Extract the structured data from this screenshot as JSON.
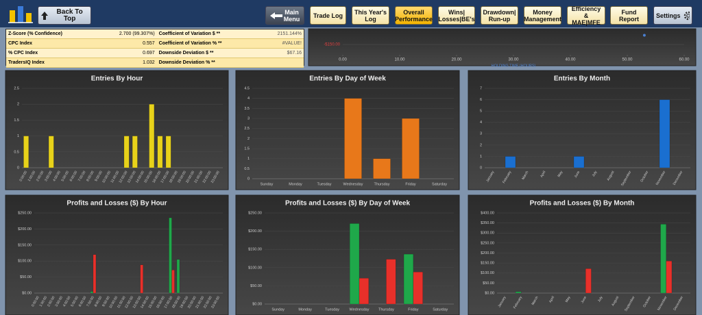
{
  "toolbar": {
    "back": "Back To Top",
    "main_menu": "Main Menu",
    "tabs": [
      "Trade Log",
      "This Year's Log",
      "Overall Performance",
      "Wins| Losses|BE's",
      "Drawdown| Run-up",
      "Money Management",
      "Efficiency & MAE|MFE",
      "Fund Report"
    ],
    "settings": "Settings"
  },
  "stats": {
    "rows": [
      [
        "Z-Score (% Confidence)",
        "2.700 (99.307%)",
        "Coefficient of Variation $ **",
        "2151.144%"
      ],
      [
        "CPC Index",
        "0.557",
        "Coefficient of Variation % **",
        "#VALUE!"
      ],
      [
        "% CPC Index",
        "0.697",
        "Downside Deviation $ **",
        "$67.16"
      ],
      [
        "TradersIQ Index",
        "1.032",
        "Downside Deviation % **"
      ]
    ]
  },
  "chart_data": [
    {
      "type": "scatter",
      "x_label": "HOLDING TIME (HOURS)",
      "x": [
        53
      ],
      "values": [
        -105
      ],
      "color": "#4a7fd0",
      "xlim": [
        0,
        60
      ],
      "xticks": [
        {
          "value": 0,
          "label": "0.00"
        },
        {
          "value": 10,
          "label": "10.00"
        },
        {
          "value": 20,
          "label": "20.00"
        },
        {
          "value": 30,
          "label": "30.00"
        },
        {
          "value": 40,
          "label": "40.00"
        },
        {
          "value": 50,
          "label": "50.00"
        },
        {
          "value": 60,
          "label": "60.00"
        }
      ],
      "ylim": [
        -200,
        -100
      ],
      "yticks": [
        {
          "value": -150,
          "label": "-$150.00"
        }
      ]
    },
    {
      "type": "bar",
      "title": "Entries By Hour",
      "categories": [
        "0:00:00",
        "1:00:00",
        "2:00:00",
        "3:00:00",
        "4:00:00",
        "5:00:00",
        "6:00:00",
        "7:00:00",
        "8:00:00",
        "9:00:00",
        "10:00:00",
        "11:00:00",
        "12:00:00",
        "13:00:00",
        "14:00:00",
        "15:00:00",
        "16:00:00",
        "17:00:00",
        "18:00:00",
        "19:00:00",
        "20:00:00",
        "21:00:00",
        "22:00:00",
        "23:00:00"
      ],
      "values": [
        1,
        0,
        0,
        1,
        0,
        0,
        0,
        0,
        0,
        0,
        0,
        0,
        1,
        1,
        0,
        2,
        1,
        1,
        0,
        0,
        0,
        0,
        0,
        0
      ],
      "color": "#e8d21a",
      "ylim": [
        0,
        2.5
      ],
      "yticks": [
        0,
        0.5,
        1,
        1.5,
        2,
        2.5
      ]
    },
    {
      "type": "bar",
      "title": "Entries By Day of Week",
      "categories": [
        "Sunday",
        "Monday",
        "Tuesday",
        "Wednesday",
        "Thursday",
        "Friday",
        "Saturday"
      ],
      "values": [
        0,
        0,
        0,
        4,
        1,
        3,
        0
      ],
      "color": "#e8781a",
      "ylim": [
        0,
        4.5
      ],
      "yticks": [
        0,
        0.5,
        1,
        1.5,
        2,
        2.5,
        3,
        3.5,
        4,
        4.5
      ]
    },
    {
      "type": "bar",
      "title": "Entries By Month",
      "categories": [
        "January",
        "February",
        "March",
        "April",
        "May",
        "June",
        "July",
        "August",
        "September",
        "October",
        "November",
        "December"
      ],
      "values": [
        0,
        1,
        0,
        0,
        0,
        1,
        0,
        0,
        0,
        0,
        6,
        0
      ],
      "color": "#1a6fd0",
      "ylim": [
        0,
        7
      ],
      "yticks": [
        0,
        1,
        2,
        3,
        4,
        5,
        6,
        7
      ]
    },
    {
      "type": "bar",
      "title": "Profits and Losses ($) By Hour",
      "categories": [
        "0:00:00",
        "1:00:00",
        "2:00:00",
        "3:00:00",
        "4:00:00",
        "5:00:00",
        "6:00:00",
        "7:00:00",
        "8:00:00",
        "9:00:00",
        "10:00:00",
        "11:00:00",
        "12:00:00",
        "13:00:00",
        "14:00:00",
        "15:00:00",
        "16:00:00",
        "17:00:00",
        "18:00:00",
        "19:00:00",
        "20:00:00",
        "21:00:00",
        "22:00:00",
        "23:00:00"
      ],
      "series": [
        {
          "color": "#1fa84a",
          "values": [
            0,
            0,
            0,
            0,
            0,
            0,
            0,
            5,
            0,
            0,
            0,
            0,
            0,
            0,
            0,
            0,
            0,
            235,
            105,
            0,
            0,
            0,
            0,
            0
          ]
        },
        {
          "color": "#e8302a",
          "values": [
            0,
            0,
            0,
            0,
            0,
            0,
            0,
            120,
            0,
            0,
            0,
            0,
            0,
            88,
            0,
            0,
            0,
            72,
            0,
            0,
            0,
            0,
            0,
            0
          ]
        }
      ],
      "ylim": [
        0,
        250
      ],
      "yticks": [
        {
          "value": 0,
          "label": "$0.00"
        },
        {
          "value": 50,
          "label": "$50.00"
        },
        {
          "value": 100,
          "label": "$100.00"
        },
        {
          "value": 150,
          "label": "$150.00"
        },
        {
          "value": 200,
          "label": "$200.00"
        },
        {
          "value": 250,
          "label": "$250.00"
        }
      ]
    },
    {
      "type": "bar",
      "title": "Profits and Losses ($) By Day of Week",
      "categories": [
        "Sunday",
        "Monday",
        "Tuesday",
        "Wednesday",
        "Thursday",
        "Friday",
        "Saturday"
      ],
      "series": [
        {
          "color": "#1fa84a",
          "values": [
            0,
            0,
            0,
            221,
            0,
            137,
            0
          ]
        },
        {
          "color": "#e8302a",
          "values": [
            0,
            0,
            0,
            71,
            123,
            88,
            0
          ]
        }
      ],
      "ylim": [
        0,
        250
      ],
      "yticks": [
        {
          "value": 0,
          "label": "$0.00"
        },
        {
          "value": 50,
          "label": "$50.00"
        },
        {
          "value": 100,
          "label": "$100.00"
        },
        {
          "value": 150,
          "label": "$150.00"
        },
        {
          "value": 200,
          "label": "$200.00"
        },
        {
          "value": 250,
          "label": "$250.00"
        }
      ]
    },
    {
      "type": "bar",
      "title": "Profits and Losses ($) By Month",
      "categories": [
        "January",
        "February",
        "March",
        "April",
        "May",
        "June",
        "July",
        "August",
        "September",
        "October",
        "November",
        "December"
      ],
      "series": [
        {
          "color": "#1fa84a",
          "values": [
            0,
            7,
            0,
            0,
            0,
            0,
            0,
            0,
            0,
            0,
            344,
            0
          ]
        },
        {
          "color": "#e8302a",
          "values": [
            0,
            0,
            0,
            0,
            0,
            122,
            0,
            0,
            0,
            0,
            160,
            0
          ]
        }
      ],
      "ylim": [
        0,
        400
      ],
      "yticks": [
        {
          "value": 0,
          "label": "$0.00"
        },
        {
          "value": 50,
          "label": "$50.00"
        },
        {
          "value": 100,
          "label": "$100.00"
        },
        {
          "value": 150,
          "label": "$150.00"
        },
        {
          "value": 200,
          "label": "$200.00"
        },
        {
          "value": 250,
          "label": "$250.00"
        },
        {
          "value": 300,
          "label": "$300.00"
        },
        {
          "value": 350,
          "label": "$350.00"
        },
        {
          "value": 400,
          "label": "$400.00"
        }
      ]
    }
  ]
}
